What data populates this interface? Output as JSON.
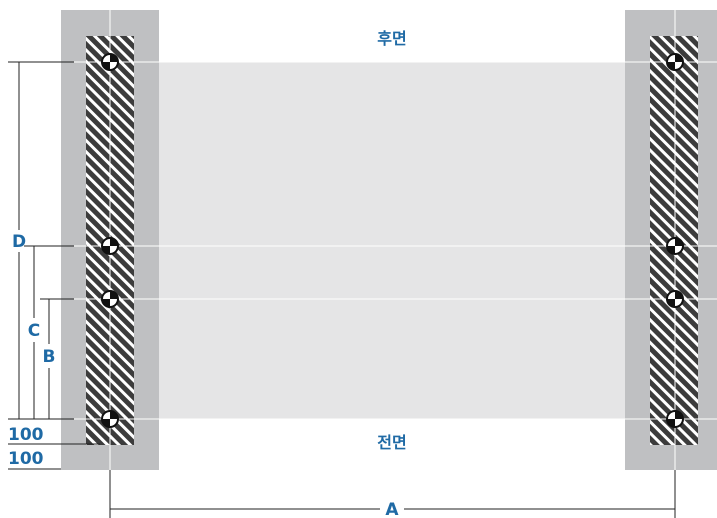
{
  "labels": {
    "rear": "후면",
    "front": "전면",
    "dim_a": "A",
    "dim_b": "B",
    "dim_c": "C",
    "dim_d": "D",
    "offset_upper": "100",
    "offset_lower": "100"
  },
  "colors": {
    "label_blue": "#1f6aa5",
    "frame_gray": "#bfc0c2",
    "platform_gray": "#e5e5e6",
    "rail_dark": "#3c3c3c",
    "guide_line": "#ffffff",
    "dim_line": "#222222"
  },
  "icons": {
    "mount_point": "target-marker-icon",
    "rail_pattern": "hatched-rail-icon"
  }
}
